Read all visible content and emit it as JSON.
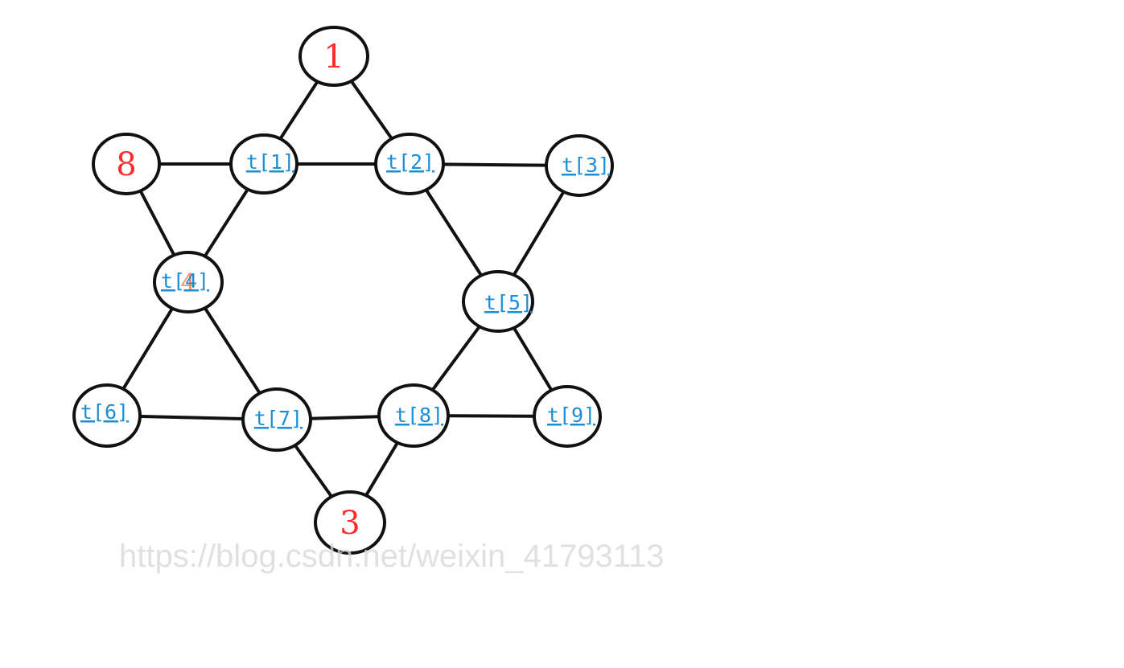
{
  "diagram": {
    "nodes": [
      {
        "id": "n1",
        "kind": "fixed",
        "text": "1"
      },
      {
        "id": "n8",
        "kind": "fixed",
        "text": "8"
      },
      {
        "id": "t1",
        "kind": "variable",
        "text": "t[1]"
      },
      {
        "id": "t2",
        "kind": "variable",
        "text": "t[2]"
      },
      {
        "id": "t3",
        "kind": "variable",
        "text": "t[3]"
      },
      {
        "id": "t4",
        "kind": "variable",
        "text": "t[4]",
        "underlying_text": "4"
      },
      {
        "id": "t5",
        "kind": "variable",
        "text": "t[5]"
      },
      {
        "id": "t6",
        "kind": "variable",
        "text": "t[6]"
      },
      {
        "id": "t7",
        "kind": "variable",
        "text": "t[7]"
      },
      {
        "id": "t8",
        "kind": "variable",
        "text": "t[8]"
      },
      {
        "id": "t9",
        "kind": "variable",
        "text": "t[9]"
      },
      {
        "id": "n3",
        "kind": "fixed",
        "text": "3"
      }
    ],
    "edges": [
      [
        "n1",
        "t1"
      ],
      [
        "n1",
        "t2"
      ],
      [
        "n8",
        "t1"
      ],
      [
        "t1",
        "t2"
      ],
      [
        "t2",
        "t3"
      ],
      [
        "n8",
        "t4"
      ],
      [
        "t1",
        "t4"
      ],
      [
        "t2",
        "t5"
      ],
      [
        "t3",
        "t5"
      ],
      [
        "t4",
        "t6"
      ],
      [
        "t4",
        "t7"
      ],
      [
        "t5",
        "t8"
      ],
      [
        "t5",
        "t9"
      ],
      [
        "t6",
        "t7"
      ],
      [
        "t7",
        "t8"
      ],
      [
        "t8",
        "t9"
      ],
      [
        "t7",
        "n3"
      ],
      [
        "t8",
        "n3"
      ]
    ]
  },
  "watermark": "https://blog.csdn.net/weixin_41793113",
  "colors": {
    "fixed_number": "#ff2b2b",
    "variable_link": "#1a8fd6",
    "stroke": "#111111"
  }
}
